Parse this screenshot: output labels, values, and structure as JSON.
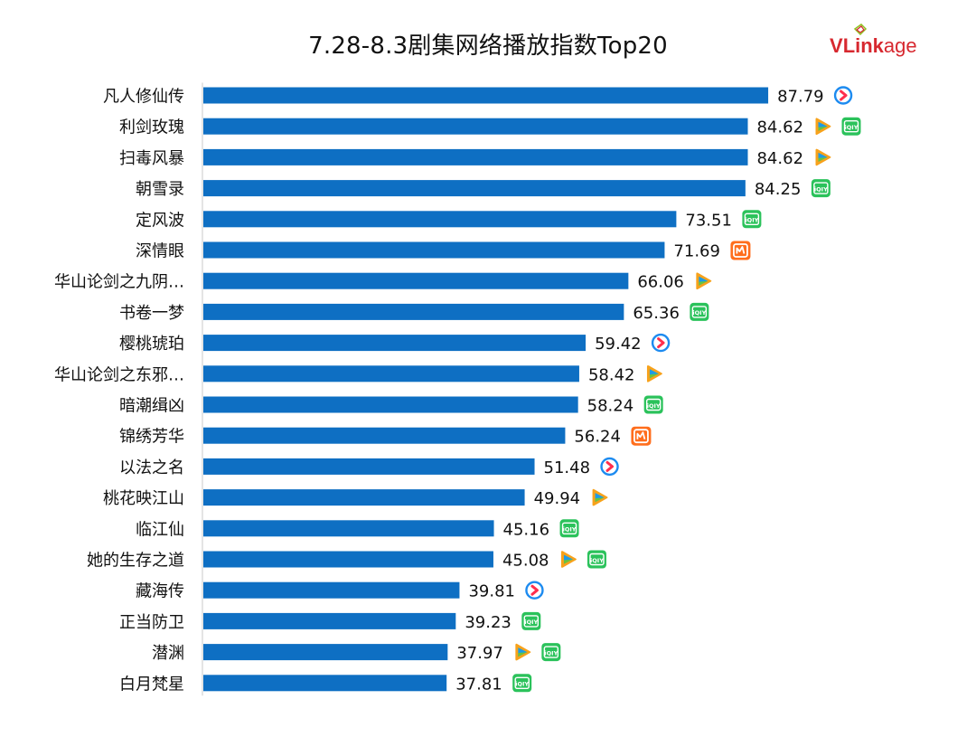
{
  "title": "7.28-8.3剧集网络播放指数Top20",
  "logo": {
    "v": "V",
    "link": "Link",
    "age": "age",
    "colors": {
      "red": "#d7282f",
      "green": "#8dc21f"
    }
  },
  "colors": {
    "bar": "#0e6fc3",
    "axis": "#c8c8c8"
  },
  "platform_icons": {
    "tencent": {
      "name": "tencent-video-icon",
      "colors": [
        "#f7a21b",
        "#1e9be6",
        "#6ac43c"
      ]
    },
    "youku": {
      "name": "youku-icon",
      "colors": [
        "#1d8bf0",
        "#ff2e4d"
      ]
    },
    "iqiyi": {
      "name": "iqiyi-icon",
      "label": "iQIY",
      "colors": [
        "#2bc25b",
        "#ffffff"
      ]
    },
    "mgtv": {
      "name": "mgtv-icon",
      "colors": [
        "#ff6e1d"
      ]
    }
  },
  "chart_data": {
    "type": "bar",
    "orientation": "horizontal",
    "title": "7.28-8.3剧集网络播放指数Top20",
    "xlim": [
      0,
      100
    ],
    "grid": false,
    "categories": [
      "凡人修仙传",
      "利剑玫瑰",
      "扫毒风暴",
      "朝雪录",
      "定风波",
      "深情眼",
      "华山论剑之九阴…",
      "书卷一梦",
      "樱桃琥珀",
      "华山论剑之东邪…",
      "暗潮缉凶",
      "锦绣芳华",
      "以法之名",
      "桃花映江山",
      "临江仙",
      "她的生存之道",
      "藏海传",
      "正当防卫",
      "潜渊",
      "白月梵星"
    ],
    "values": [
      87.79,
      84.62,
      84.62,
      84.25,
      73.51,
      71.69,
      66.06,
      65.36,
      59.42,
      58.42,
      58.24,
      56.24,
      51.48,
      49.94,
      45.16,
      45.08,
      39.81,
      39.23,
      37.97,
      37.81
    ],
    "labels": [
      "87.79",
      "84.62",
      "84.62",
      "84.25",
      "73.51",
      "71.69",
      "66.06",
      "65.36",
      "59.42",
      "58.42",
      "58.24",
      "56.24",
      "51.48",
      "49.94",
      "45.16",
      "45.08",
      "39.81",
      "39.23",
      "37.97",
      "37.81"
    ],
    "platforms": [
      [
        "youku"
      ],
      [
        "tencent",
        "iqiyi"
      ],
      [
        "tencent"
      ],
      [
        "iqiyi"
      ],
      [
        "iqiyi"
      ],
      [
        "mgtv"
      ],
      [
        "tencent"
      ],
      [
        "iqiyi"
      ],
      [
        "youku"
      ],
      [
        "tencent"
      ],
      [
        "iqiyi"
      ],
      [
        "mgtv"
      ],
      [
        "youku"
      ],
      [
        "tencent"
      ],
      [
        "iqiyi"
      ],
      [
        "tencent",
        "iqiyi"
      ],
      [
        "youku"
      ],
      [
        "iqiyi"
      ],
      [
        "tencent",
        "iqiyi"
      ],
      [
        "iqiyi"
      ]
    ]
  }
}
